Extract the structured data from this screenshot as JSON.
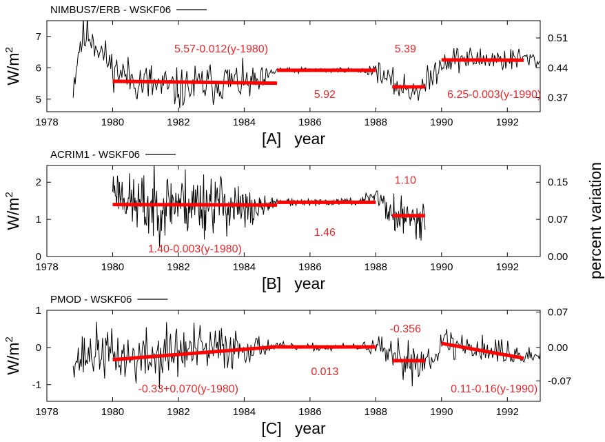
{
  "figure": {
    "right_axis_title": "percent variation",
    "colors": {
      "data": "#000000",
      "fit": "#ff0000",
      "annotation": "#e8262c"
    }
  },
  "chart_data": [
    {
      "id": "A",
      "type": "line",
      "legend": "NIMBUS7/ERB - WSKF06",
      "xlabel": "[A]   year",
      "ylabel": "W/m",
      "ylabel_sup": "2",
      "xlim": [
        1978,
        1993
      ],
      "ylim": [
        4.6,
        7.5
      ],
      "xticks": [
        1978,
        1980,
        1982,
        1984,
        1986,
        1988,
        1990,
        1992
      ],
      "yticks": [
        5,
        6,
        7
      ],
      "y2ticks": [
        {
          "v": 5.05,
          "label": "0.37"
        },
        {
          "v": 6.0,
          "label": "0.44"
        },
        {
          "v": 6.95,
          "label": "0.51"
        }
      ],
      "series": [
        {
          "role": "data",
          "seed": 11,
          "x": [
            1978.8,
            1979.0,
            1979.3,
            1979.6,
            1980.0,
            1980.5,
            1981.0,
            1981.5,
            1982.0,
            1982.5,
            1983.0,
            1983.5,
            1984.0,
            1984.5,
            1985.0,
            1985.5,
            1986.0,
            1986.5,
            1987.0,
            1987.5,
            1988.0,
            1988.5,
            1989.0,
            1989.5,
            1990.0,
            1990.5,
            1991.0,
            1991.5,
            1992.0,
            1992.5,
            1993.0
          ],
          "y": [
            5.4,
            6.8,
            7.1,
            6.6,
            6.0,
            5.7,
            5.5,
            5.4,
            5.3,
            5.4,
            5.5,
            5.6,
            5.5,
            5.5,
            5.95,
            5.9,
            5.95,
            5.9,
            5.95,
            5.9,
            5.95,
            5.5,
            5.3,
            5.4,
            6.2,
            6.3,
            6.25,
            6.3,
            6.25,
            6.3,
            6.2
          ],
          "amp": [
            0.4,
            0.5,
            0.5,
            0.4,
            0.4,
            0.45,
            0.55,
            0.5,
            0.45,
            0.5,
            0.5,
            0.45,
            0.4,
            0.35,
            0.06,
            0.06,
            0.06,
            0.06,
            0.06,
            0.06,
            0.2,
            0.3,
            0.35,
            0.35,
            0.3,
            0.3,
            0.3,
            0.3,
            0.3,
            0.25,
            0.15
          ]
        },
        {
          "role": "fit",
          "x": [
            1980,
            1985
          ],
          "y": [
            5.57,
            5.51
          ]
        },
        {
          "role": "fit",
          "x": [
            1985,
            1988
          ],
          "y": [
            5.92,
            5.92
          ]
        },
        {
          "role": "fit",
          "x": [
            1988.5,
            1989.5
          ],
          "y": [
            5.39,
            5.39
          ]
        },
        {
          "role": "fit",
          "x": [
            1990,
            1992.5
          ],
          "y": [
            6.25,
            6.2425
          ]
        }
      ],
      "annotations": [
        {
          "text": "5.57-0.012(y-1980)",
          "x": 1983.3,
          "y": 6.6
        },
        {
          "text": "5.92",
          "x": 1986.45,
          "y": 5.15
        },
        {
          "text": "5.39",
          "x": 1988.9,
          "y": 6.6
        },
        {
          "text": "6.25-0.003(y-1990)",
          "x": 1991.6,
          "y": 5.15
        }
      ]
    },
    {
      "id": "B",
      "type": "line",
      "legend": "ACRIM1 - WSKF06",
      "xlabel": "[B]   year",
      "ylabel": "W/m",
      "ylabel_sup": "2",
      "xlim": [
        1978,
        1993
      ],
      "ylim": [
        0,
        2.45
      ],
      "xticks": [
        1978,
        1980,
        1982,
        1984,
        1986,
        1988,
        1990,
        1992
      ],
      "yticks": [
        0,
        1,
        2
      ],
      "y2ticks": [
        {
          "v": 0.0,
          "label": "0.00"
        },
        {
          "v": 1.0,
          "label": "0.07"
        },
        {
          "v": 2.0,
          "label": "0.15"
        }
      ],
      "series": [
        {
          "role": "data",
          "seed": 23,
          "x": [
            1980.0,
            1980.5,
            1981.0,
            1981.5,
            1982.0,
            1982.5,
            1983.0,
            1983.5,
            1984.0,
            1984.5,
            1985.0,
            1985.5,
            1986.0,
            1986.5,
            1987.0,
            1987.5,
            1988.0,
            1988.5,
            1989.0,
            1989.5
          ],
          "y": [
            1.9,
            1.5,
            1.3,
            1.4,
            1.5,
            1.4,
            1.5,
            1.4,
            1.2,
            1.3,
            1.5,
            1.45,
            1.45,
            1.45,
            1.5,
            1.45,
            1.7,
            1.1,
            1.0,
            1.1
          ],
          "amp": [
            0.35,
            0.5,
            0.7,
            0.6,
            0.6,
            0.7,
            0.6,
            0.55,
            0.5,
            0.2,
            0.07,
            0.07,
            0.07,
            0.07,
            0.07,
            0.07,
            0.2,
            0.4,
            0.4,
            0.4
          ]
        },
        {
          "role": "fit",
          "x": [
            1980,
            1985
          ],
          "y": [
            1.4,
            1.385
          ]
        },
        {
          "role": "fit",
          "x": [
            1985,
            1988
          ],
          "y": [
            1.46,
            1.46
          ]
        },
        {
          "role": "fit",
          "x": [
            1988.5,
            1989.5
          ],
          "y": [
            1.1,
            1.1
          ]
        }
      ],
      "annotations": [
        {
          "text": "1.40-0.003(y-1980)",
          "x": 1982.5,
          "y": 0.2
        },
        {
          "text": "1.46",
          "x": 1986.45,
          "y": 0.65
        },
        {
          "text": "1.10",
          "x": 1988.9,
          "y": 2.05
        }
      ]
    },
    {
      "id": "C",
      "type": "line",
      "legend": "PMOD - WSKF06",
      "xlabel": "[C]   year",
      "ylabel": "W/m",
      "ylabel_sup": "2",
      "xlim": [
        1978,
        1993
      ],
      "ylim": [
        -1.45,
        1.0
      ],
      "xticks": [
        1978,
        1980,
        1982,
        1984,
        1986,
        1988,
        1990,
        1992
      ],
      "yticks": [
        -1,
        0,
        1
      ],
      "y2ticks": [
        {
          "v": -0.9,
          "label": "-0.07"
        },
        {
          "v": 0.0,
          "label": "0.00"
        },
        {
          "v": 0.95,
          "label": "0.07"
        }
      ],
      "series": [
        {
          "role": "data",
          "seed": 37,
          "x": [
            1978.8,
            1979.0,
            1979.5,
            1980.0,
            1980.5,
            1981.0,
            1981.5,
            1982.0,
            1982.5,
            1983.0,
            1983.5,
            1984.0,
            1984.5,
            1985.0,
            1985.5,
            1986.0,
            1986.5,
            1987.0,
            1987.5,
            1988.0,
            1988.5,
            1989.0,
            1989.5,
            1990.0,
            1990.5,
            1991.0,
            1991.5,
            1992.0,
            1992.5,
            1993.0
          ],
          "y": [
            -0.3,
            -0.3,
            -0.1,
            -0.2,
            -0.3,
            -0.3,
            -0.2,
            -0.1,
            -0.1,
            -0.1,
            0.0,
            0.0,
            0.0,
            0.05,
            0.0,
            0.0,
            0.0,
            0.0,
            0.0,
            0.05,
            -0.35,
            -0.35,
            -0.35,
            0.1,
            0.05,
            0.0,
            -0.1,
            -0.15,
            -0.25,
            -0.2
          ],
          "amp": [
            0.3,
            0.45,
            0.5,
            0.45,
            0.55,
            0.55,
            0.6,
            0.55,
            0.55,
            0.5,
            0.45,
            0.35,
            0.2,
            0.07,
            0.07,
            0.07,
            0.07,
            0.07,
            0.07,
            0.2,
            0.35,
            0.4,
            0.35,
            0.35,
            0.35,
            0.3,
            0.3,
            0.3,
            0.2,
            0.1
          ]
        },
        {
          "role": "fit",
          "x": [
            1980,
            1985
          ],
          "y": [
            -0.33,
            0.02
          ]
        },
        {
          "role": "fit",
          "x": [
            1985,
            1988
          ],
          "y": [
            0.013,
            0.013
          ]
        },
        {
          "role": "fit",
          "x": [
            1988.5,
            1989.5
          ],
          "y": [
            -0.356,
            -0.356
          ]
        },
        {
          "role": "fit",
          "x": [
            1990,
            1992.5
          ],
          "y": [
            0.11,
            -0.29
          ]
        }
      ],
      "annotations": [
        {
          "text": "-0.33+0.070(y-1980)",
          "x": 1982.3,
          "y": -1.12
        },
        {
          "text": "0.013",
          "x": 1986.45,
          "y": -0.65
        },
        {
          "text": "-0.356",
          "x": 1988.9,
          "y": 0.5
        },
        {
          "text": "0.11-0.16(y-1990)",
          "x": 1991.6,
          "y": -1.12
        }
      ]
    }
  ]
}
